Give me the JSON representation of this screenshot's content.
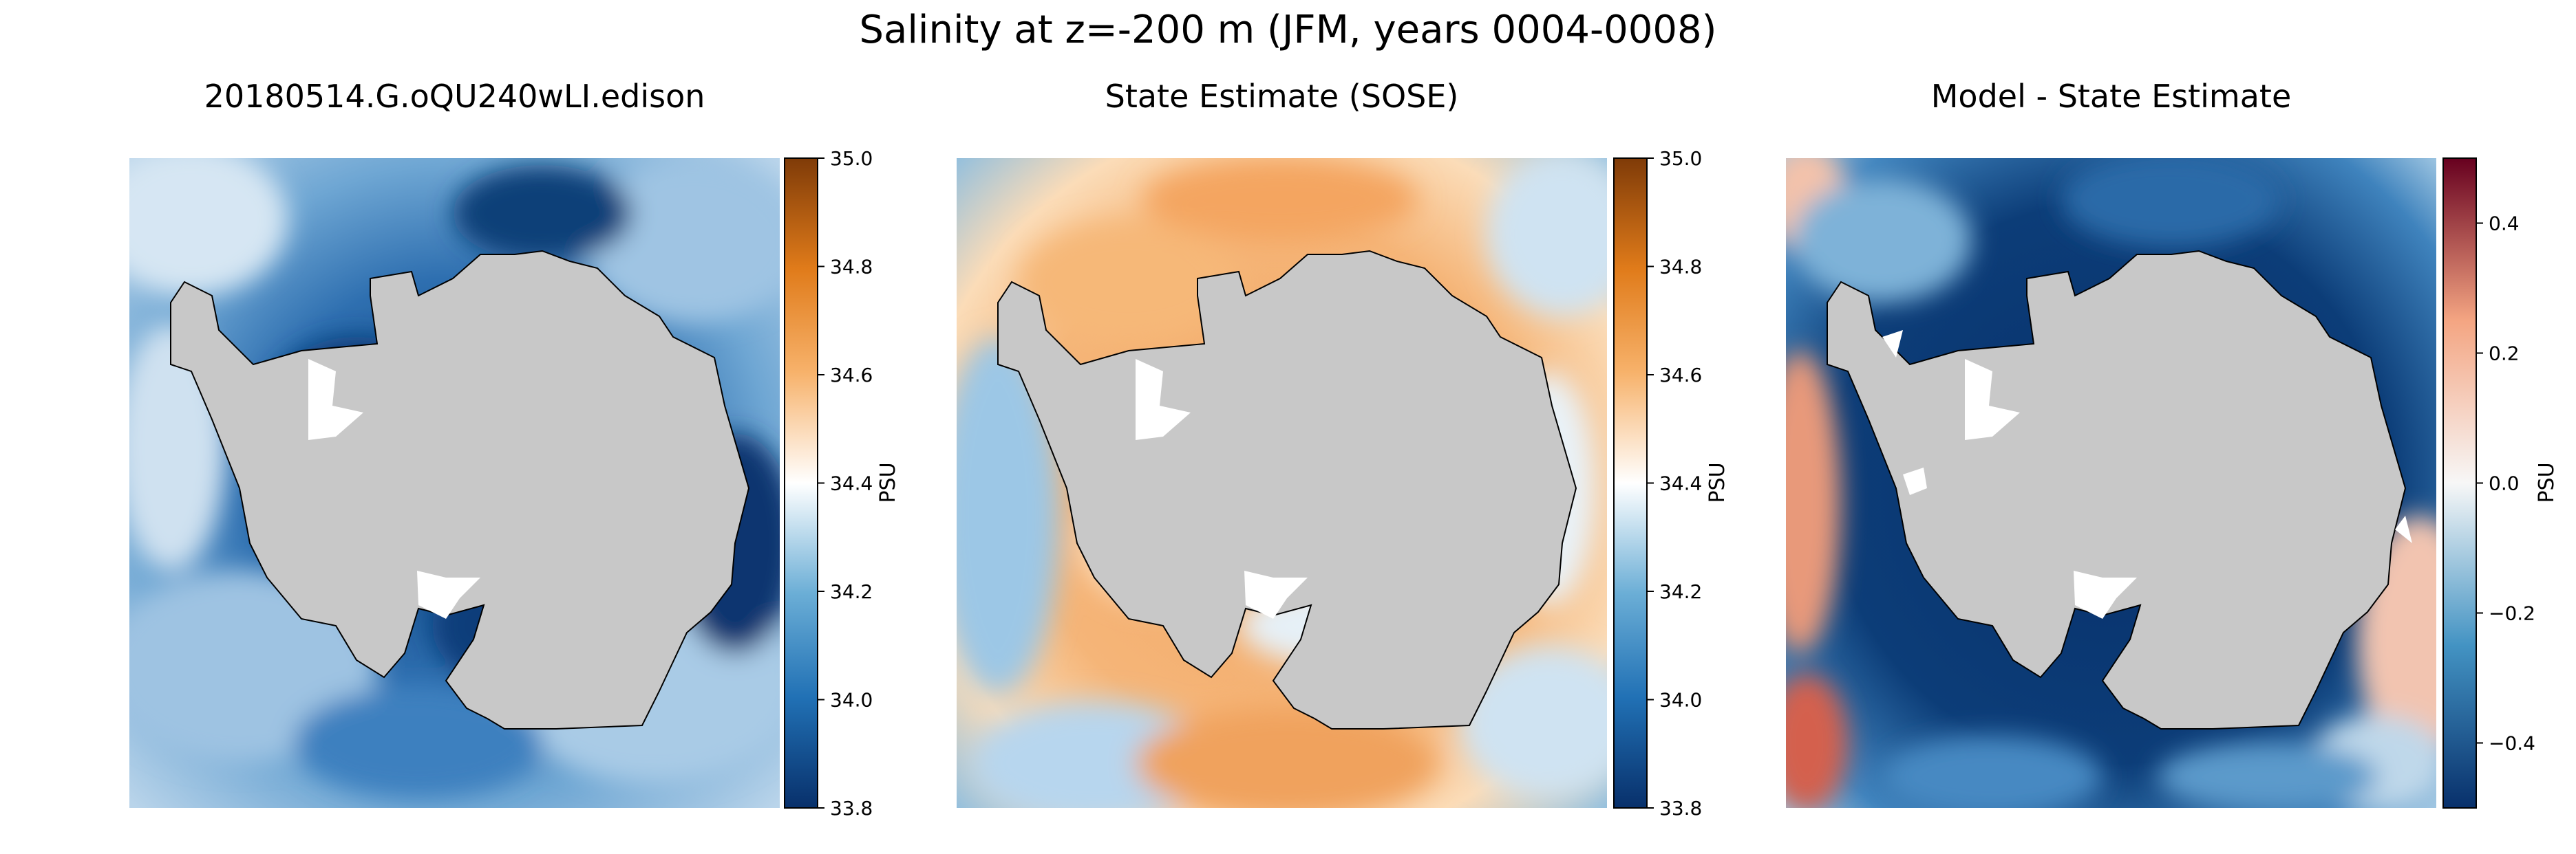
{
  "figure": {
    "title": "Salinity at z=-200 m (JFM, years 0004-0008)"
  },
  "panels": [
    {
      "title": "20180514.G.oQU240wLI.edison",
      "colorbar": {
        "label": "PSU",
        "ticks": [
          "35.0",
          "34.8",
          "34.6",
          "34.4",
          "34.2",
          "34.0",
          "33.8"
        ],
        "range": [
          33.8,
          35.0
        ],
        "colormap": "RdBu_r-like blue-white-orange",
        "colors": [
          "#08306b",
          "#2171b5",
          "#6baed6",
          "#ffffff",
          "#f7b26b",
          "#e07b1a",
          "#7f3b08"
        ]
      },
      "field_colors": {
        "background": "#4e8fc6",
        "light": "#c6dcee",
        "dark": "#0b3d7a"
      }
    },
    {
      "title": "State Estimate (SOSE)",
      "colorbar": {
        "label": "PSU",
        "ticks": [
          "35.0",
          "34.8",
          "34.6",
          "34.4",
          "34.2",
          "34.0",
          "33.8"
        ],
        "range": [
          33.8,
          35.0
        ],
        "colors": [
          "#08306b",
          "#2171b5",
          "#6baed6",
          "#ffffff",
          "#f7b26b",
          "#e07b1a",
          "#7f3b08"
        ]
      },
      "field_colors": {
        "background": "#f5b97a",
        "light": "#fde4c8",
        "dark": "#79b4dc"
      }
    },
    {
      "title": "Model - State Estimate",
      "colorbar": {
        "label": "PSU",
        "ticks": [
          "0.4",
          "0.2",
          "0.0",
          "−0.2",
          "−0.4"
        ],
        "range": [
          -0.5,
          0.5
        ],
        "colormap": "RdBu_r",
        "colors": [
          "#08306b",
          "#4393c3",
          "#f7f7f7",
          "#f4a582",
          "#67001f"
        ]
      },
      "field_colors": {
        "background": "#0a3a72",
        "light": "#8fbfe0",
        "dark": "#08306b"
      }
    }
  ],
  "land_color": "#c8c8c8"
}
